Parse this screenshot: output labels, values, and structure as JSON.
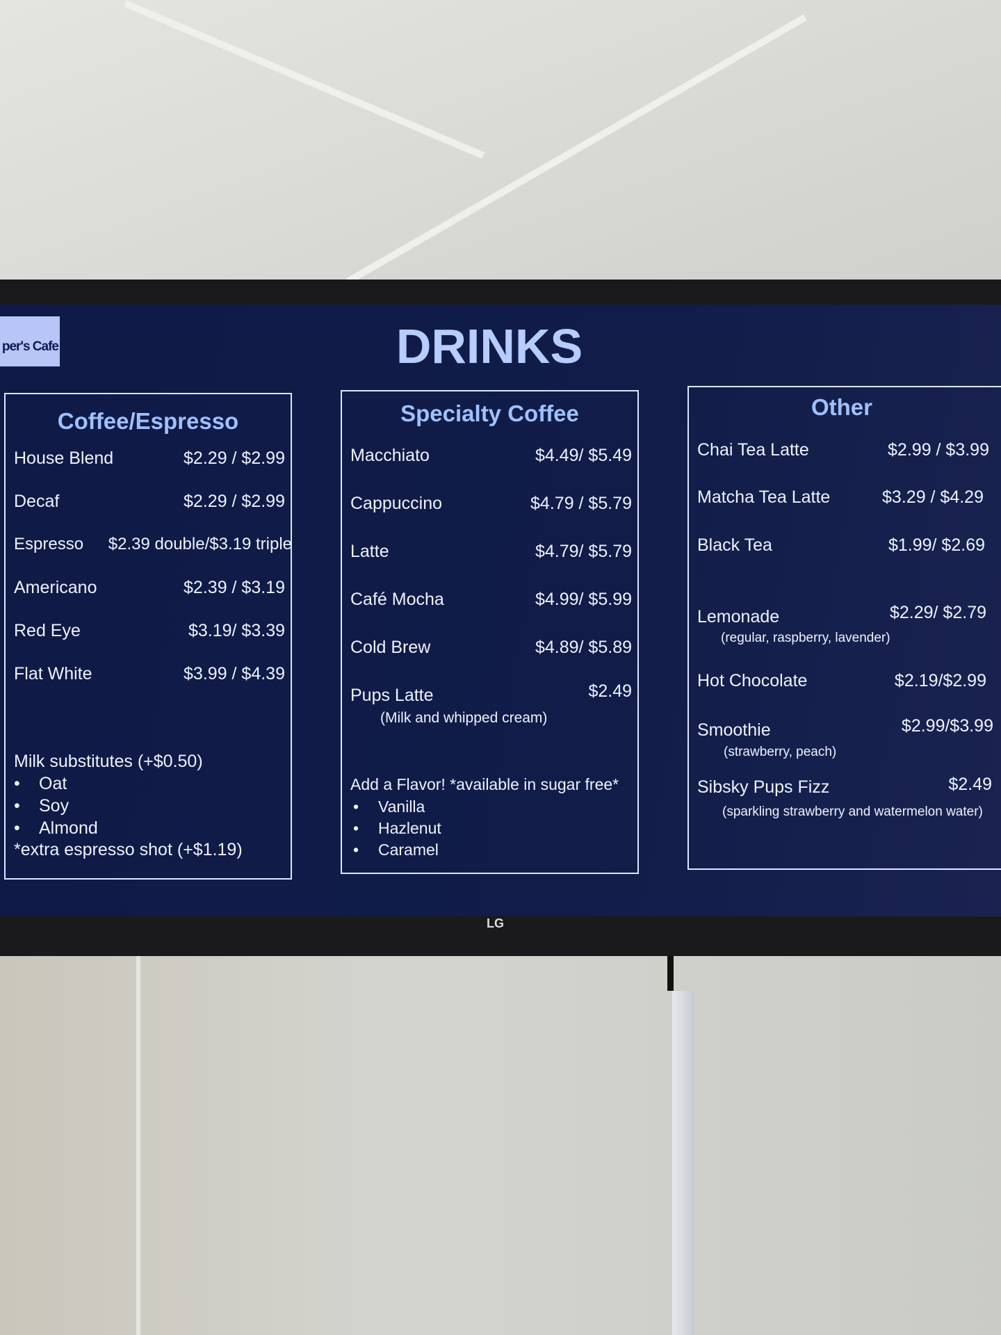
{
  "logo": {
    "text": "per's Cafe"
  },
  "title": "DRINKS",
  "tv_brand": "LG",
  "coffee": {
    "heading": "Coffee/Espresso",
    "items": [
      {
        "name": "House Blend",
        "price": "$2.29 / $2.99"
      },
      {
        "name": "Decaf",
        "price": "$2.29 / $2.99"
      },
      {
        "name": "Espresso",
        "price": "$2.39 double/$3.19 triple"
      },
      {
        "name": "Americano",
        "price": "$2.39 / $3.19"
      },
      {
        "name": "Red Eye",
        "price": "$3.19/ $3.39"
      },
      {
        "name": "Flat White",
        "price": "$3.99 / $4.39"
      }
    ],
    "milk_heading": "Milk substitutes (+$0.50)",
    "milk": [
      "Oat",
      "Soy",
      "Almond"
    ],
    "extra": "*extra espresso shot (+$1.19)"
  },
  "specialty": {
    "heading": "Specialty Coffee",
    "items": [
      {
        "name": "Macchiato",
        "price": "$4.49/ $5.49"
      },
      {
        "name": "Cappuccino",
        "price": "$4.79 / $5.79"
      },
      {
        "name": "Latte",
        "price": "$4.79/ $5.79"
      },
      {
        "name": "Café Mocha",
        "price": "$4.99/ $5.99"
      },
      {
        "name": "Cold Brew",
        "price": "$4.89/ $5.89"
      },
      {
        "name": "Pups Latte",
        "price": "$2.49",
        "note": "(Milk and whipped cream)"
      }
    ],
    "flavor_heading": "Add a Flavor! *available in sugar free*",
    "flavors": [
      "Vanilla",
      "Hazlenut",
      "Caramel"
    ]
  },
  "other": {
    "heading": "Other",
    "items": [
      {
        "name": "Chai Tea Latte",
        "price": "$2.99 / $3.99"
      },
      {
        "name": "Matcha Tea Latte",
        "price": "$3.29 / $4.29"
      },
      {
        "name": "Black Tea",
        "price": "$1.99/ $2.69"
      },
      {
        "name": "Lemonade",
        "price": "$2.29/ $2.79",
        "note": "(regular, raspberry, lavender)"
      },
      {
        "name": "Hot Chocolate",
        "price": "$2.19/$2.99"
      },
      {
        "name": "Smoothie",
        "price": "$2.99/$3.99",
        "note": "(strawberry, peach)"
      },
      {
        "name": "Sibsky Pups Fizz",
        "price": "$2.49",
        "note": "(sparkling strawberry and watermelon water)"
      }
    ]
  }
}
